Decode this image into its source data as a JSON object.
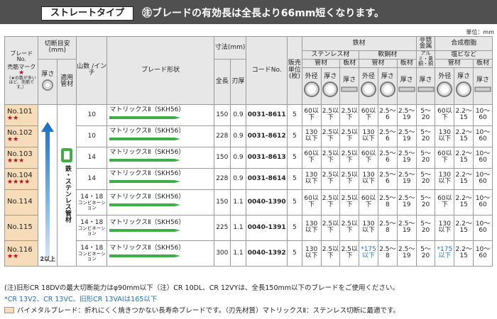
{
  "header": {
    "tab_label": "ストレートタイプ",
    "note": "㊟ブレードの有効長は全長より66mm短くなります。"
  },
  "unit_label": "単位：mm",
  "columns": {
    "blade_no": "ブレード No.",
    "color_mark": "売筋マーク",
    "color_mark_note": "（★の数が多いほど、売筋です。）",
    "cut_guide": "切断目安 (mm)",
    "thickness": "厚さ",
    "pipe": "適用管材",
    "teeth": "山数 /インチ",
    "shape": "ブレード形状",
    "dims": "寸法(mm)",
    "length": "全長",
    "tooth_thick": "刃厚",
    "code": "コードNo.",
    "sale_unit": "販売単位 (枚)",
    "steel": "鉄材",
    "stainless": "ステンレス材",
    "mild": "軟鋼材",
    "nonferrous": "非鉄金属",
    "synthetic": "合成樹脂",
    "pipe_mat": "管材",
    "plate": "板材",
    "alumi": "アルミ・黄銅・銅",
    "pvc": "塩ビなど",
    "outer": "外径",
    "thick": "厚さ"
  },
  "sidebar": {
    "pipe_label": "鉄・ステンレス管材",
    "thickness_range": "2以上"
  },
  "rows": [
    {
      "no": "No.101",
      "stars": "★★",
      "teeth": "10",
      "shape": "マトリックスⅡ（SKH56）",
      "shape2": "",
      "len": "150",
      "tt": "0.9",
      "code": "0031-8611",
      "unit": "5",
      "v": [
        "60以下",
        "2.5以下",
        "2.5以下",
        "60以下",
        "2.5～6",
        "2.5～19",
        "5～20",
        "60以下",
        "2.2～15",
        "10～60"
      ]
    },
    {
      "no": "No.102",
      "stars": "★★",
      "teeth": "10",
      "shape": "マトリックスⅡ（SKH56）",
      "shape2": "",
      "len": "228",
      "tt": "0.9",
      "code": "0031-8612",
      "unit": "5",
      "v": [
        "130以下",
        "2.5以下",
        "2.5以下",
        "130以下",
        "2.5～6",
        "2.5～19",
        "5～20",
        "130以下",
        "2.2～15",
        "10～60"
      ]
    },
    {
      "no": "No.103",
      "stars": "★★★",
      "teeth": "14",
      "shape": "マトリックスⅡ（SKH56）",
      "shape2": "",
      "len": "150",
      "tt": "0.9",
      "code": "0031-8613",
      "unit": "5",
      "v": [
        "60以下",
        "2.5以下",
        "2.5以下",
        "60以下",
        "2.5～6",
        "2.5～19",
        "5～20",
        "60以下",
        "2.2～15",
        "10～60"
      ]
    },
    {
      "no": "No.104",
      "stars": "★★★★",
      "teeth": "14",
      "shape": "マトリックスⅡ（SKH56）",
      "shape2": "",
      "len": "228",
      "tt": "0.9",
      "code": "0031-8614",
      "unit": "5",
      "v": [
        "130以下",
        "2.5以下",
        "2.5以下",
        "130以下",
        "2.5～6",
        "2.5～19",
        "5～20",
        "130以下",
        "2.2～15",
        "10～60"
      ]
    },
    {
      "no": "No.114",
      "stars": "",
      "teeth": "14・18",
      "teeth2": "コンビネーション",
      "shape": "マトリックスⅡ（SKH56）",
      "shape2": "",
      "len": "150",
      "tt": "1.1",
      "code": "0040-1390",
      "unit": "5",
      "v": [
        "60以下",
        "2.5以下",
        "2.5以下",
        "60以下",
        "2.5～8",
        "2.5～19",
        "5～20",
        "60以下",
        "2.2～15",
        "10～60"
      ]
    },
    {
      "no": "No.115",
      "stars": "",
      "teeth": "14・18",
      "teeth2": "コンビネーション",
      "shape": "マトリックスⅡ（SKH56）",
      "shape2": "",
      "len": "225",
      "tt": "1.1",
      "code": "0040-1391",
      "unit": "5",
      "v": [
        "130以下",
        "2.5以下",
        "2.5以下",
        "130以下",
        "2.5～8",
        "2.5～19",
        "5～20",
        "130以下",
        "2.2～15",
        "10～60"
      ]
    },
    {
      "no": "No.116",
      "stars": "★★",
      "teeth": "14・18",
      "teeth2": "コンビネーション",
      "shape": "マトリックスⅡ（SKH56）",
      "shape2": "",
      "len": "300",
      "tt": "1.1",
      "code": "0040-1392",
      "unit": "5",
      "v": [
        "130以下",
        "2.5以下",
        "2.5以下",
        "*175以下",
        "2.5～8",
        "2.5～19",
        "5～20",
        "*175以下",
        "2.2～15",
        "10～60"
      ]
    }
  ],
  "footnotes": {
    "f1": "(注)旧形CR 18DVの最大切断能力はφ90mm以下（注）CR 10DL、CR 12VYは、全長150mm以下のブレードをご使用ください。",
    "f2": "*CR 13V2、CR 13VC、旧形CR 13VAIは165以下",
    "f3": "バイメタルブレード：折れにくく焼きつかない長寿命ブレードです。（刃先材質）マトリックスⅡ：ステンレス切断に最適です。"
  },
  "colors": {
    "header_bg": "#505050",
    "row_highlight": "#f6dcb8",
    "blade_green": "#3fae49",
    "arrow_blue": "#1a6fc0",
    "star_red": "#d6001c"
  }
}
